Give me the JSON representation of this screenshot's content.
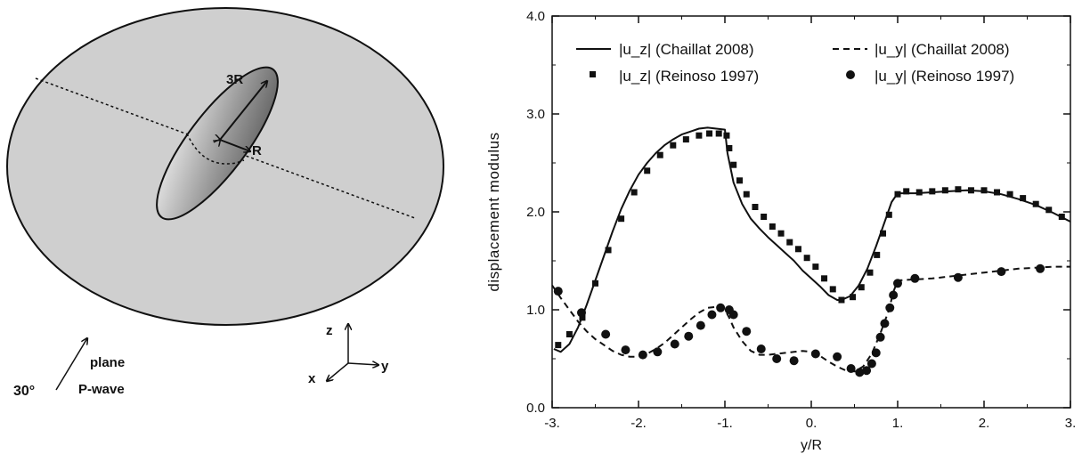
{
  "diagram": {
    "label_3r": "3R",
    "label_r": "R",
    "axis_z": "z",
    "axis_x": "x",
    "axis_y": "y",
    "wave_angle": "30°",
    "wave_line1": "plane",
    "wave_line2": "P-wave"
  },
  "chart_data": {
    "type": "line",
    "xlabel": "y/R",
    "ylabel": "displacement modulus",
    "xlim": [
      -3,
      3
    ],
    "ylim": [
      0,
      4
    ],
    "x_ticks": [
      -3,
      -2,
      -1,
      0,
      1,
      2,
      3
    ],
    "x_tick_labels": [
      "-3.",
      "-2.",
      "-1.",
      "0.",
      "1.",
      "2.",
      "3."
    ],
    "y_ticks": [
      0,
      1,
      2,
      3,
      4
    ],
    "y_tick_labels": [
      "0.0",
      "1.0",
      "2.0",
      "3.0",
      "4.0"
    ],
    "grid": false,
    "legend_position": "top",
    "series": [
      {
        "name": "|u_z| (Chaillat 2008)",
        "style": "solid",
        "x": [
          -2.98,
          -2.9,
          -2.8,
          -2.7,
          -2.6,
          -2.5,
          -2.4,
          -2.3,
          -2.2,
          -2.1,
          -2.0,
          -1.9,
          -1.8,
          -1.7,
          -1.6,
          -1.5,
          -1.4,
          -1.3,
          -1.2,
          -1.1,
          -1.0,
          -0.97,
          -0.9,
          -0.8,
          -0.7,
          -0.6,
          -0.5,
          -0.4,
          -0.3,
          -0.2,
          -0.1,
          0.0,
          0.1,
          0.2,
          0.3,
          0.35,
          0.45,
          0.55,
          0.65,
          0.75,
          0.85,
          0.93,
          1.0,
          1.2,
          1.4,
          1.6,
          1.8,
          2.0,
          2.2,
          2.4,
          2.6,
          2.8,
          3.0
        ],
        "y": [
          0.6,
          0.57,
          0.65,
          0.82,
          1.05,
          1.3,
          1.55,
          1.8,
          2.03,
          2.22,
          2.38,
          2.5,
          2.6,
          2.68,
          2.74,
          2.79,
          2.82,
          2.85,
          2.86,
          2.85,
          2.84,
          2.6,
          2.3,
          2.08,
          1.93,
          1.83,
          1.74,
          1.66,
          1.58,
          1.5,
          1.4,
          1.32,
          1.24,
          1.15,
          1.1,
          1.1,
          1.14,
          1.25,
          1.42,
          1.65,
          1.9,
          2.1,
          2.19,
          2.19,
          2.2,
          2.21,
          2.22,
          2.21,
          2.18,
          2.13,
          2.07,
          1.99,
          1.9
        ]
      },
      {
        "name": "|u_y| (Chaillat 2008)",
        "style": "dashed",
        "x": [
          -3.0,
          -2.9,
          -2.8,
          -2.7,
          -2.6,
          -2.5,
          -2.4,
          -2.3,
          -2.2,
          -2.1,
          -2.0,
          -1.9,
          -1.8,
          -1.7,
          -1.6,
          -1.5,
          -1.4,
          -1.3,
          -1.2,
          -1.1,
          -1.0,
          -0.95,
          -0.9,
          -0.8,
          -0.7,
          -0.6,
          -0.5,
          -0.4,
          -0.3,
          -0.2,
          -0.1,
          0.0,
          0.1,
          0.2,
          0.3,
          0.4,
          0.5,
          0.6,
          0.7,
          0.8,
          0.9,
          0.95,
          1.0,
          1.2,
          1.4,
          1.6,
          1.8,
          2.0,
          2.2,
          2.4,
          2.6,
          2.8,
          3.0
        ],
        "y": [
          1.25,
          1.12,
          1.0,
          0.88,
          0.78,
          0.7,
          0.64,
          0.58,
          0.54,
          0.52,
          0.52,
          0.55,
          0.6,
          0.66,
          0.74,
          0.82,
          0.9,
          0.97,
          1.02,
          1.03,
          1.0,
          0.92,
          0.82,
          0.68,
          0.58,
          0.54,
          0.54,
          0.55,
          0.56,
          0.57,
          0.58,
          0.57,
          0.53,
          0.47,
          0.42,
          0.38,
          0.37,
          0.42,
          0.55,
          0.76,
          1.0,
          1.18,
          1.3,
          1.31,
          1.32,
          1.34,
          1.36,
          1.38,
          1.4,
          1.42,
          1.43,
          1.44,
          1.44
        ]
      },
      {
        "name": "|u_z| (Reinoso 1997)",
        "style": "square",
        "x": [
          -2.93,
          -2.8,
          -2.65,
          -2.5,
          -2.35,
          -2.2,
          -2.05,
          -1.9,
          -1.75,
          -1.6,
          -1.45,
          -1.3,
          -1.18,
          -1.07,
          -0.98,
          -0.95,
          -0.9,
          -0.83,
          -0.75,
          -0.65,
          -0.55,
          -0.45,
          -0.35,
          -0.25,
          -0.15,
          -0.05,
          0.05,
          0.15,
          0.25,
          0.35,
          0.48,
          0.58,
          0.68,
          0.76,
          0.83,
          0.9,
          1.0,
          1.1,
          1.25,
          1.4,
          1.55,
          1.7,
          1.85,
          2.0,
          2.15,
          2.3,
          2.45,
          2.6,
          2.75,
          2.9
        ],
        "y": [
          0.64,
          0.75,
          0.92,
          1.27,
          1.61,
          1.93,
          2.2,
          2.42,
          2.58,
          2.68,
          2.74,
          2.78,
          2.8,
          2.8,
          2.78,
          2.65,
          2.48,
          2.32,
          2.18,
          2.05,
          1.95,
          1.85,
          1.78,
          1.69,
          1.62,
          1.53,
          1.44,
          1.32,
          1.21,
          1.1,
          1.13,
          1.23,
          1.38,
          1.56,
          1.78,
          1.97,
          2.18,
          2.21,
          2.2,
          2.21,
          2.22,
          2.23,
          2.22,
          2.22,
          2.2,
          2.18,
          2.14,
          2.08,
          2.02,
          1.95
        ]
      },
      {
        "name": "|u_y| (Reinoso 1997)",
        "style": "circle",
        "x": [
          -2.93,
          -2.66,
          -2.38,
          -2.15,
          -1.95,
          -1.78,
          -1.58,
          -1.42,
          -1.28,
          -1.15,
          -1.05,
          -0.95,
          -0.9,
          -0.75,
          -0.58,
          -0.4,
          -0.2,
          0.05,
          0.3,
          0.46,
          0.56,
          0.64,
          0.7,
          0.75,
          0.8,
          0.85,
          0.91,
          0.95,
          1.0,
          1.2,
          1.7,
          2.2,
          2.65
        ],
        "y": [
          1.19,
          0.97,
          0.75,
          0.59,
          0.54,
          0.57,
          0.65,
          0.73,
          0.84,
          0.95,
          1.02,
          1.0,
          0.95,
          0.78,
          0.6,
          0.5,
          0.48,
          0.55,
          0.52,
          0.4,
          0.36,
          0.38,
          0.45,
          0.56,
          0.72,
          0.86,
          1.02,
          1.15,
          1.27,
          1.32,
          1.33,
          1.39,
          1.42
        ]
      }
    ]
  }
}
